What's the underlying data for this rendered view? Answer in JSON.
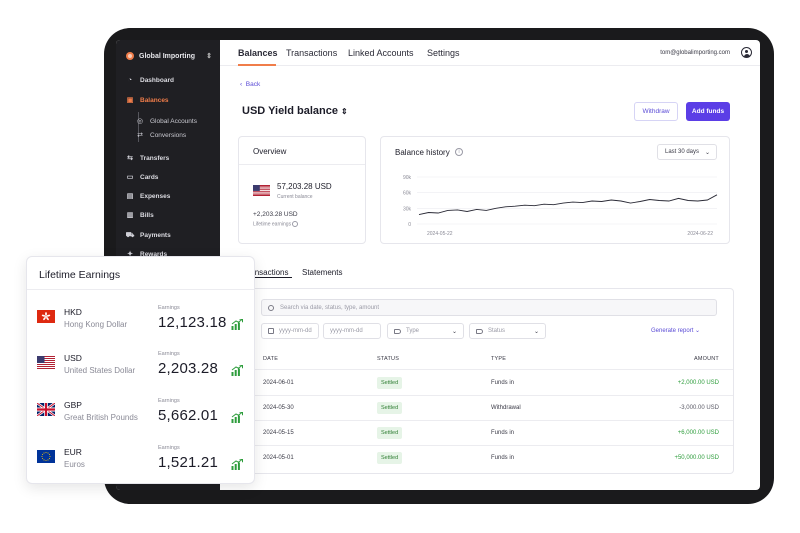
{
  "sidebar": {
    "org_name": "Global Importing",
    "items": [
      {
        "label": "Dashboard",
        "icon": "dashboard-icon"
      },
      {
        "label": "Balances",
        "icon": "wallet-icon",
        "active": true
      },
      {
        "label": "Global Accounts",
        "icon": "globe-icon"
      },
      {
        "label": "Conversions",
        "icon": "convert-icon"
      },
      {
        "label": "Transfers",
        "icon": "transfer-icon"
      },
      {
        "label": "Cards",
        "icon": "card-icon"
      },
      {
        "label": "Expenses",
        "icon": "receipt-icon"
      },
      {
        "label": "Bills",
        "icon": "bill-icon"
      },
      {
        "label": "Payments",
        "icon": "cart-icon"
      },
      {
        "label": "Rewards",
        "icon": "gift-icon"
      }
    ]
  },
  "topnav": {
    "tabs": [
      "Balances",
      "Transactions",
      "Linked Accounts",
      "Settings"
    ],
    "user_email": "tom@globalimporting.com"
  },
  "page": {
    "back_label": "Back",
    "title": "USD Yield balance",
    "withdraw_label": "Withdraw",
    "add_funds_label": "Add funds"
  },
  "overview": {
    "title": "Overview",
    "balance": "57,203.28 USD",
    "balance_label": "Current balance",
    "earnings": "+2,203.28 USD",
    "earnings_label": "Lifetime earnings"
  },
  "history": {
    "title": "Balance history",
    "range": "Last 30 days"
  },
  "chart_data": {
    "type": "line",
    "title": "Balance history",
    "x_labels": [
      "2024-05-22",
      "2024-06-22"
    ],
    "y_ticks": [
      "90k",
      "60k",
      "30k",
      "0"
    ],
    "ylim": [
      0,
      90000
    ],
    "values": [
      18000,
      22000,
      21000,
      26000,
      27000,
      24000,
      28000,
      26000,
      30000,
      33000,
      34000,
      36000,
      35000,
      38000,
      37000,
      40000,
      42000,
      41000,
      44000,
      43000,
      46000,
      44000,
      40000,
      43000,
      47000,
      45000,
      44000,
      49000,
      45000,
      44000,
      46000,
      56000
    ],
    "grid": true,
    "color": "#2a2a36"
  },
  "subtabs": [
    "Transactions",
    "Statements"
  ],
  "transactions": {
    "search_placeholder": "Search via date, status, type, amount",
    "date_from": "yyyy-mm-dd",
    "date_to": "yyyy-mm-dd",
    "type_filter": "Type",
    "status_filter": "Status",
    "generate_report": "Generate report",
    "headers": [
      "DATE",
      "STATUS",
      "TYPE",
      "AMOUNT"
    ],
    "rows": [
      {
        "date": "2024-06-01",
        "status": "Settled",
        "type": "Funds in",
        "amount": "+2,000.00 USD",
        "sign": "pos"
      },
      {
        "date": "2024-05-30",
        "status": "Settled",
        "type": "Withdrawal",
        "amount": "-3,000.00 USD",
        "sign": "neg"
      },
      {
        "date": "2024-05-15",
        "status": "Settled",
        "type": "Funds in",
        "amount": "+6,000.00 USD",
        "sign": "pos"
      },
      {
        "date": "2024-05-01",
        "status": "Settled",
        "type": "Funds in",
        "amount": "+50,000.00 USD",
        "sign": "pos"
      }
    ]
  },
  "lifetime": {
    "title": "Lifetime Earnings",
    "earnings_label": "Earnings",
    "rows": [
      {
        "code": "HKD",
        "name": "Hong Kong Dollar",
        "value": "12,123.18",
        "flag": "hk-flag-icon"
      },
      {
        "code": "USD",
        "name": "United States Dollar",
        "value": "2,203.28",
        "flag": "us-flag-icon"
      },
      {
        "code": "GBP",
        "name": "Great British Pounds",
        "value": "5,662.01",
        "flag": "uk-flag-icon"
      },
      {
        "code": "EUR",
        "name": "Euros",
        "value": "1,521.21",
        "flag": "eu-flag-icon"
      }
    ]
  },
  "colors": {
    "accent": "#f07d4a",
    "primary": "#5b3ee6",
    "positive": "#2e9d3c"
  }
}
